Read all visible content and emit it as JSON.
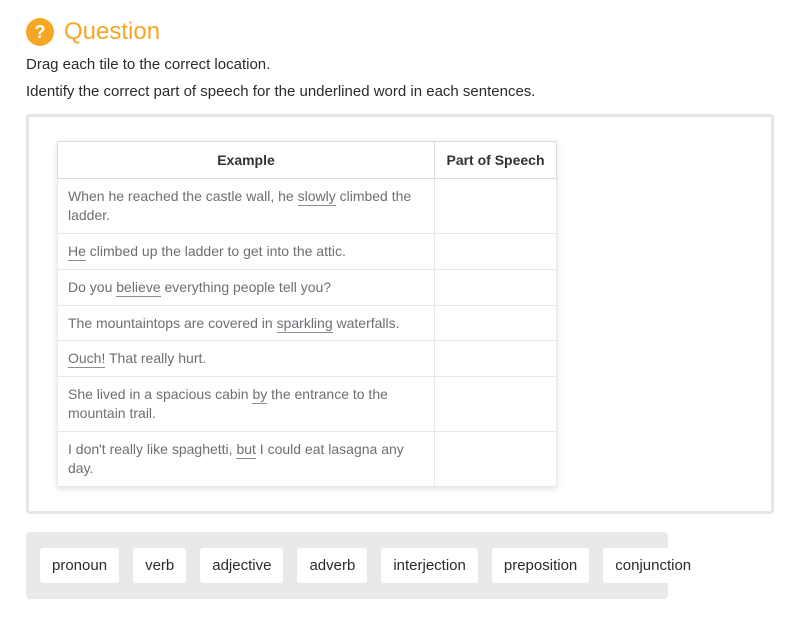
{
  "colors": {
    "accent": "#f5a623",
    "tray_bg": "#e7e9eb",
    "panel_border": "#e3e7ea",
    "text_primary": "#2b2b2b",
    "text_muted": "#6c6f73",
    "cell_border": "#e6e8ea",
    "header_border": "#d9dcde",
    "underline": "#8a8d91"
  },
  "header": {
    "icon_glyph": "?",
    "title": "Question"
  },
  "instructions": {
    "line1": "Drag each tile to the correct location.",
    "line2": "Identify the correct part of speech for the underlined word in each sentences."
  },
  "table": {
    "col_example": "Example",
    "col_pos": "Part of Speech",
    "rows": [
      {
        "pre": "When he reached the castle wall, he ",
        "u": "slowly",
        "post": " climbed the ladder."
      },
      {
        "pre": "",
        "u": "He",
        "post": " climbed up the ladder to get into the attic."
      },
      {
        "pre": "Do you ",
        "u": "believe",
        "post": " everything people tell you?"
      },
      {
        "pre": "The mountaintops are covered in ",
        "u": "sparkling",
        "post": " waterfalls."
      },
      {
        "pre": "",
        "u": "Ouch!",
        "post": " That really hurt."
      },
      {
        "pre": "She lived in a spacious cabin ",
        "u": "by",
        "post": " the entrance to the mountain trail."
      },
      {
        "pre": "I don't really like spaghetti, ",
        "u": "but",
        "post": " I could eat lasagna any day."
      }
    ]
  },
  "tiles": [
    "pronoun",
    "verb",
    "adjective",
    "adverb",
    "interjection",
    "preposition",
    "conjunction"
  ]
}
